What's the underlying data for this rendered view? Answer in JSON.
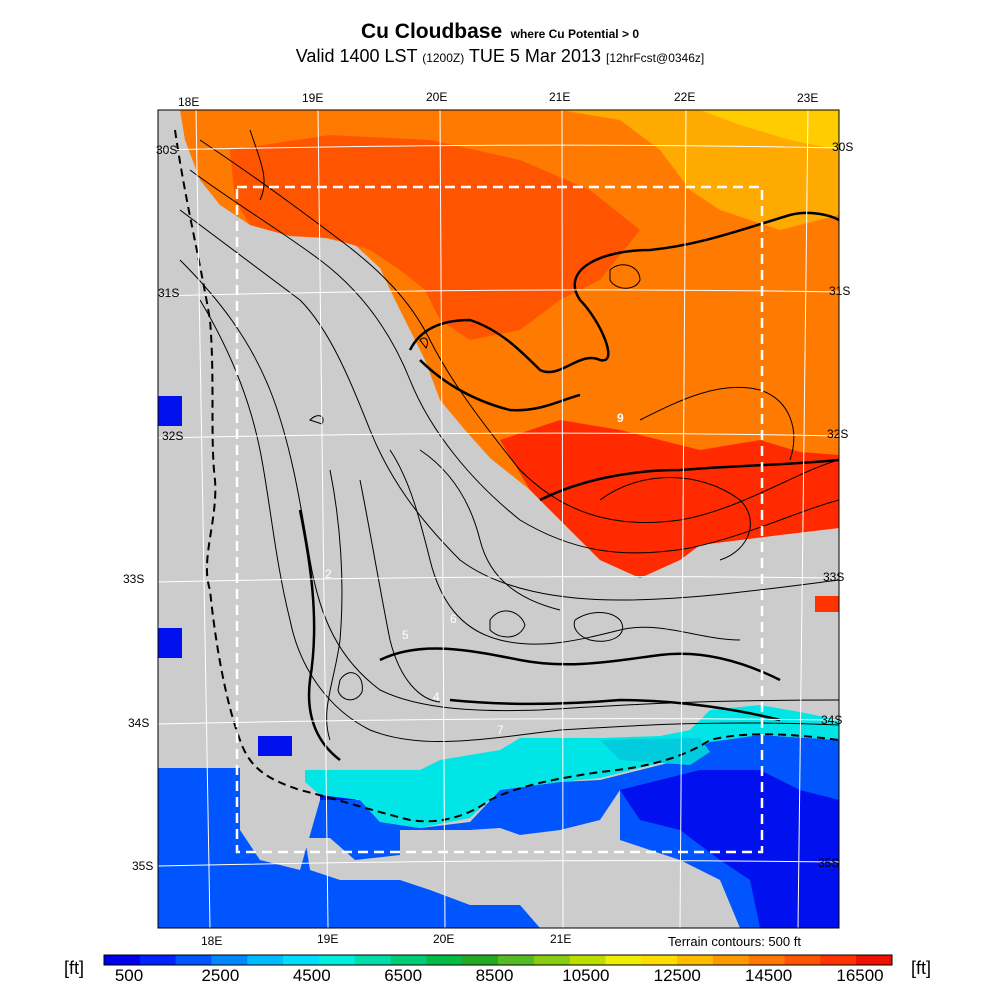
{
  "header": {
    "title": "Cu Cloudbase",
    "qualifier": "where Cu Potential > 0",
    "valid_prefix": "Valid 1400 LST",
    "valid_zulu": "(1200Z)",
    "valid_date": "TUE 5 Mar 2013",
    "forecast": "[12hrFcst@0346z]"
  },
  "map": {
    "longitude_labels_top": [
      "18E",
      "19E",
      "20E",
      "21E",
      "22E",
      "23E"
    ],
    "longitude_labels_bottom": [
      "18E",
      "19E",
      "20E",
      "21E"
    ],
    "latitude_labels_left": [
      "30S",
      "31S",
      "32S",
      "33S",
      "34S",
      "35S"
    ],
    "latitude_labels_right": [
      "30S",
      "31S",
      "32S",
      "33S",
      "34S",
      "35S"
    ],
    "contour_labels": [
      "9",
      "7",
      "5",
      "6",
      "4",
      "2"
    ],
    "terrain_note": "Terrain contours: 500 ft",
    "colors": {
      "land": "#cccccc",
      "ocean": "#0033ff",
      "deep_ocean": "#0010ee",
      "coast_cyan": "#00e0e0",
      "grid": "#ffffff",
      "contour": "#000000"
    }
  },
  "colorbar": {
    "unit_left": "[ft]",
    "unit_right": "[ft]",
    "tick_labels": [
      "500",
      "2500",
      "4500",
      "6500",
      "8500",
      "10500",
      "12500",
      "14500",
      "16500"
    ],
    "colors": [
      "#0000ee",
      "#0022ff",
      "#0055ff",
      "#0088ff",
      "#00bbff",
      "#00ddff",
      "#00eedd",
      "#00ddaa",
      "#00cc77",
      "#00bb44",
      "#22aa22",
      "#55bb22",
      "#88cc11",
      "#bbdd00",
      "#eeee00",
      "#ffdd00",
      "#ffbb00",
      "#ff9900",
      "#ff7700",
      "#ff5500",
      "#ff3300",
      "#ee1100"
    ]
  }
}
